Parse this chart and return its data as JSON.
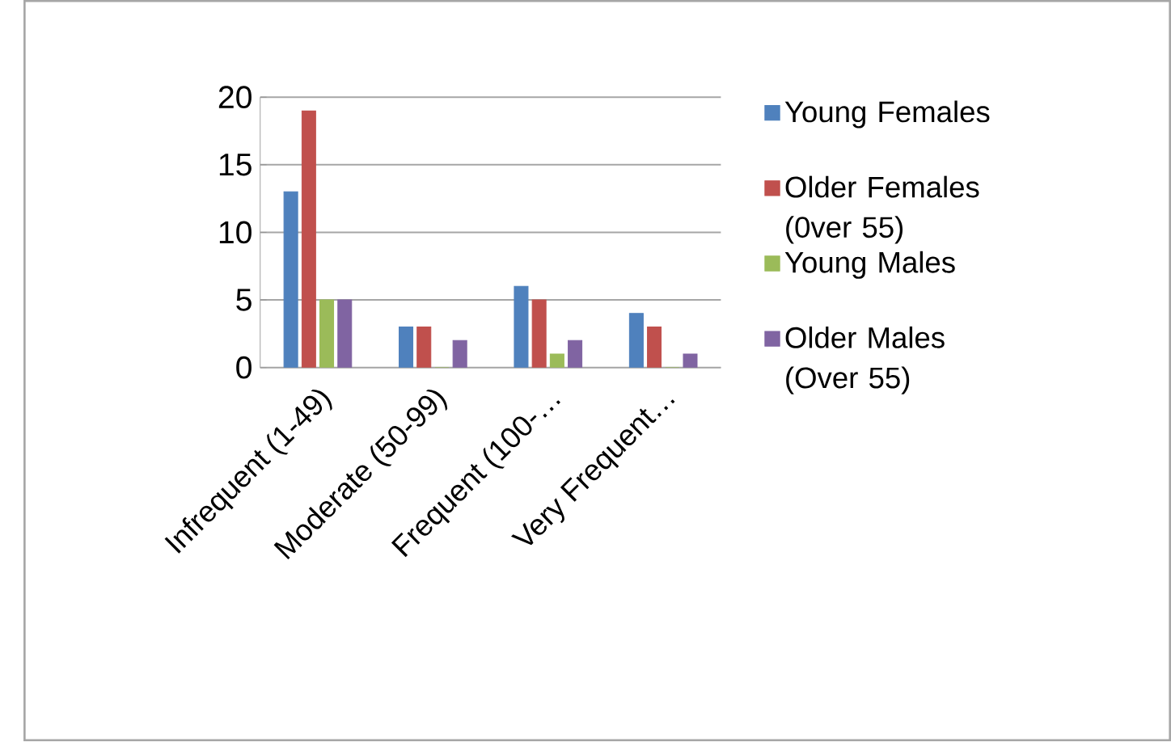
{
  "chart_data": {
    "type": "bar",
    "categories": [
      "Infrequent (1-49)",
      "Moderate (50-99)",
      "Frequent (100-…",
      "Very Frequent…"
    ],
    "series": [
      {
        "name": "Young Females",
        "color": "#4f81bd",
        "values": [
          13,
          3,
          6,
          4
        ]
      },
      {
        "name": "Older Females (0ver 55)",
        "color": "#c0504d",
        "values": [
          19,
          3,
          5,
          3
        ]
      },
      {
        "name": "Young Males",
        "color": "#9bbb59",
        "values": [
          5,
          0,
          1,
          0
        ]
      },
      {
        "name": "Older Males (Over 55)",
        "color": "#8064a2",
        "values": [
          5,
          2,
          2,
          1
        ]
      }
    ],
    "ylim": [
      0,
      20
    ],
    "yticks": [
      0,
      5,
      10,
      15,
      20
    ],
    "grid": "y",
    "legend": "right"
  }
}
